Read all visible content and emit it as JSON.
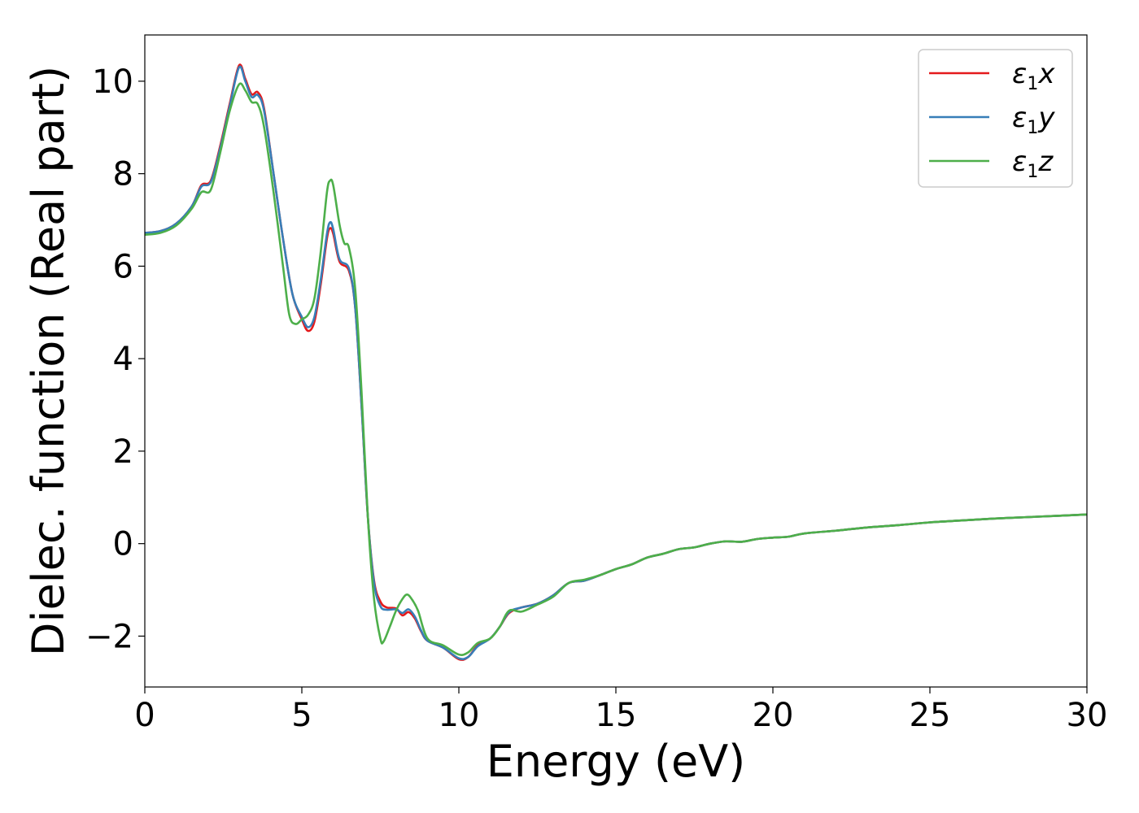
{
  "chart_data": {
    "type": "line",
    "xlabel": "Energy (eV)",
    "ylabel": "Dielec. function (Real part)",
    "xlim": [
      0,
      30
    ],
    "ylim": [
      -3.1,
      11.0
    ],
    "xticks": [
      0,
      5,
      10,
      15,
      20,
      25,
      30
    ],
    "xtick_labels": [
      "0",
      "5",
      "10",
      "15",
      "20",
      "25",
      "30"
    ],
    "yticks": [
      -2,
      0,
      2,
      4,
      6,
      8,
      10
    ],
    "ytick_labels": [
      "−2",
      "0",
      "2",
      "4",
      "6",
      "8",
      "10"
    ],
    "grid": false,
    "legend_position": "top-right",
    "series": [
      {
        "name": "ε₁x",
        "symbol": "ε",
        "sub": "1",
        "comp": "x",
        "color": "#e41a1c",
        "points": [
          [
            0,
            6.72
          ],
          [
            0.5,
            6.76
          ],
          [
            1.0,
            6.92
          ],
          [
            1.5,
            7.3
          ],
          [
            1.8,
            7.75
          ],
          [
            2.1,
            7.85
          ],
          [
            2.4,
            8.6
          ],
          [
            2.7,
            9.5
          ],
          [
            3.0,
            10.34
          ],
          [
            3.2,
            10.05
          ],
          [
            3.4,
            9.72
          ],
          [
            3.6,
            9.76
          ],
          [
            3.8,
            9.4
          ],
          [
            4.1,
            8.0
          ],
          [
            4.4,
            6.6
          ],
          [
            4.7,
            5.4
          ],
          [
            5.0,
            4.85
          ],
          [
            5.2,
            4.6
          ],
          [
            5.4,
            4.8
          ],
          [
            5.6,
            5.6
          ],
          [
            5.8,
            6.6
          ],
          [
            5.9,
            6.82
          ],
          [
            6.0,
            6.7
          ],
          [
            6.2,
            6.1
          ],
          [
            6.5,
            5.9
          ],
          [
            6.7,
            5.1
          ],
          [
            6.9,
            3.0
          ],
          [
            7.1,
            0.6
          ],
          [
            7.3,
            -0.8
          ],
          [
            7.5,
            -1.25
          ],
          [
            7.7,
            -1.38
          ],
          [
            8.0,
            -1.4
          ],
          [
            8.2,
            -1.55
          ],
          [
            8.4,
            -1.48
          ],
          [
            8.6,
            -1.62
          ],
          [
            8.8,
            -1.9
          ],
          [
            9.0,
            -2.1
          ],
          [
            9.5,
            -2.25
          ],
          [
            10.0,
            -2.5
          ],
          [
            10.3,
            -2.45
          ],
          [
            10.6,
            -2.2
          ],
          [
            11.0,
            -2.05
          ],
          [
            11.3,
            -1.8
          ],
          [
            11.6,
            -1.5
          ],
          [
            12.0,
            -1.38
          ],
          [
            12.5,
            -1.3
          ],
          [
            13.0,
            -1.12
          ],
          [
            13.5,
            -0.85
          ],
          [
            14.0,
            -0.8
          ],
          [
            14.5,
            -0.68
          ],
          [
            15.0,
            -0.55
          ],
          [
            15.5,
            -0.45
          ],
          [
            16.0,
            -0.3
          ],
          [
            16.5,
            -0.22
          ],
          [
            17.0,
            -0.12
          ],
          [
            17.5,
            -0.08
          ],
          [
            18.0,
            0.0
          ],
          [
            18.5,
            0.05
          ],
          [
            19.0,
            0.04
          ],
          [
            19.5,
            0.1
          ],
          [
            20.0,
            0.13
          ],
          [
            20.5,
            0.15
          ],
          [
            21.0,
            0.22
          ],
          [
            22.0,
            0.28
          ],
          [
            23.0,
            0.35
          ],
          [
            24.0,
            0.4
          ],
          [
            25.0,
            0.46
          ],
          [
            26.0,
            0.5
          ],
          [
            27.0,
            0.54
          ],
          [
            28.0,
            0.57
          ],
          [
            29.0,
            0.6
          ],
          [
            30.0,
            0.63
          ]
        ]
      },
      {
        "name": "ε₁y",
        "symbol": "ε",
        "sub": "1",
        "comp": "y",
        "color": "#377eb8",
        "points": [
          [
            0,
            6.72
          ],
          [
            0.5,
            6.76
          ],
          [
            1.0,
            6.92
          ],
          [
            1.5,
            7.3
          ],
          [
            1.8,
            7.72
          ],
          [
            2.1,
            7.82
          ],
          [
            2.4,
            8.55
          ],
          [
            2.7,
            9.45
          ],
          [
            3.0,
            10.3
          ],
          [
            3.2,
            10.0
          ],
          [
            3.4,
            9.66
          ],
          [
            3.6,
            9.7
          ],
          [
            3.8,
            9.35
          ],
          [
            4.1,
            8.0
          ],
          [
            4.4,
            6.6
          ],
          [
            4.7,
            5.4
          ],
          [
            5.0,
            4.9
          ],
          [
            5.2,
            4.68
          ],
          [
            5.4,
            4.9
          ],
          [
            5.6,
            5.7
          ],
          [
            5.8,
            6.7
          ],
          [
            5.9,
            6.95
          ],
          [
            6.0,
            6.8
          ],
          [
            6.2,
            6.15
          ],
          [
            6.5,
            5.95
          ],
          [
            6.7,
            5.1
          ],
          [
            6.9,
            3.0
          ],
          [
            7.1,
            0.6
          ],
          [
            7.3,
            -0.85
          ],
          [
            7.5,
            -1.35
          ],
          [
            7.7,
            -1.43
          ],
          [
            8.0,
            -1.42
          ],
          [
            8.2,
            -1.5
          ],
          [
            8.4,
            -1.42
          ],
          [
            8.6,
            -1.58
          ],
          [
            8.8,
            -1.88
          ],
          [
            9.0,
            -2.1
          ],
          [
            9.5,
            -2.25
          ],
          [
            10.0,
            -2.48
          ],
          [
            10.3,
            -2.45
          ],
          [
            10.6,
            -2.22
          ],
          [
            11.0,
            -2.05
          ],
          [
            11.3,
            -1.8
          ],
          [
            11.6,
            -1.48
          ],
          [
            12.0,
            -1.38
          ],
          [
            12.5,
            -1.3
          ],
          [
            13.0,
            -1.12
          ],
          [
            13.5,
            -0.85
          ],
          [
            14.0,
            -0.8
          ],
          [
            14.5,
            -0.68
          ],
          [
            15.0,
            -0.55
          ],
          [
            15.5,
            -0.45
          ],
          [
            16.0,
            -0.3
          ],
          [
            16.5,
            -0.22
          ],
          [
            17.0,
            -0.12
          ],
          [
            17.5,
            -0.08
          ],
          [
            18.0,
            0.0
          ],
          [
            18.5,
            0.05
          ],
          [
            19.0,
            0.04
          ],
          [
            19.5,
            0.1
          ],
          [
            20.0,
            0.13
          ],
          [
            20.5,
            0.15
          ],
          [
            21.0,
            0.22
          ],
          [
            22.0,
            0.28
          ],
          [
            23.0,
            0.35
          ],
          [
            24.0,
            0.4
          ],
          [
            25.0,
            0.46
          ],
          [
            26.0,
            0.5
          ],
          [
            27.0,
            0.54
          ],
          [
            28.0,
            0.57
          ],
          [
            29.0,
            0.6
          ],
          [
            30.0,
            0.63
          ]
        ]
      },
      {
        "name": "ε₁z",
        "symbol": "ε",
        "sub": "1",
        "comp": "z",
        "color": "#4daf4a",
        "points": [
          [
            0,
            6.68
          ],
          [
            0.5,
            6.72
          ],
          [
            1.0,
            6.88
          ],
          [
            1.5,
            7.25
          ],
          [
            1.8,
            7.6
          ],
          [
            2.1,
            7.65
          ],
          [
            2.4,
            8.45
          ],
          [
            2.7,
            9.35
          ],
          [
            3.0,
            9.93
          ],
          [
            3.2,
            9.8
          ],
          [
            3.4,
            9.55
          ],
          [
            3.6,
            9.5
          ],
          [
            3.8,
            9.0
          ],
          [
            4.1,
            7.6
          ],
          [
            4.4,
            6.0
          ],
          [
            4.6,
            4.95
          ],
          [
            4.8,
            4.75
          ],
          [
            5.0,
            4.85
          ],
          [
            5.2,
            4.95
          ],
          [
            5.4,
            5.3
          ],
          [
            5.6,
            6.3
          ],
          [
            5.8,
            7.6
          ],
          [
            5.9,
            7.85
          ],
          [
            6.0,
            7.75
          ],
          [
            6.2,
            6.9
          ],
          [
            6.35,
            6.5
          ],
          [
            6.5,
            6.4
          ],
          [
            6.7,
            5.5
          ],
          [
            6.9,
            3.3
          ],
          [
            7.1,
            0.6
          ],
          [
            7.3,
            -1.2
          ],
          [
            7.5,
            -2.05
          ],
          [
            7.6,
            -2.12
          ],
          [
            7.8,
            -1.8
          ],
          [
            8.0,
            -1.45
          ],
          [
            8.2,
            -1.2
          ],
          [
            8.35,
            -1.1
          ],
          [
            8.5,
            -1.2
          ],
          [
            8.7,
            -1.45
          ],
          [
            9.0,
            -2.05
          ],
          [
            9.5,
            -2.2
          ],
          [
            10.0,
            -2.4
          ],
          [
            10.3,
            -2.35
          ],
          [
            10.6,
            -2.15
          ],
          [
            11.0,
            -2.05
          ],
          [
            11.3,
            -1.8
          ],
          [
            11.6,
            -1.45
          ],
          [
            12.0,
            -1.47
          ],
          [
            12.5,
            -1.32
          ],
          [
            13.0,
            -1.15
          ],
          [
            13.5,
            -0.85
          ],
          [
            14.0,
            -0.78
          ],
          [
            14.5,
            -0.68
          ],
          [
            15.0,
            -0.55
          ],
          [
            15.5,
            -0.45
          ],
          [
            16.0,
            -0.3
          ],
          [
            16.5,
            -0.22
          ],
          [
            17.0,
            -0.12
          ],
          [
            17.5,
            -0.08
          ],
          [
            18.0,
            0.0
          ],
          [
            18.5,
            0.05
          ],
          [
            19.0,
            0.04
          ],
          [
            19.5,
            0.1
          ],
          [
            20.0,
            0.13
          ],
          [
            20.5,
            0.15
          ],
          [
            21.0,
            0.22
          ],
          [
            22.0,
            0.28
          ],
          [
            23.0,
            0.35
          ],
          [
            24.0,
            0.4
          ],
          [
            25.0,
            0.46
          ],
          [
            26.0,
            0.5
          ],
          [
            27.0,
            0.54
          ],
          [
            28.0,
            0.57
          ],
          [
            29.0,
            0.6
          ],
          [
            30.0,
            0.63
          ]
        ]
      }
    ]
  }
}
